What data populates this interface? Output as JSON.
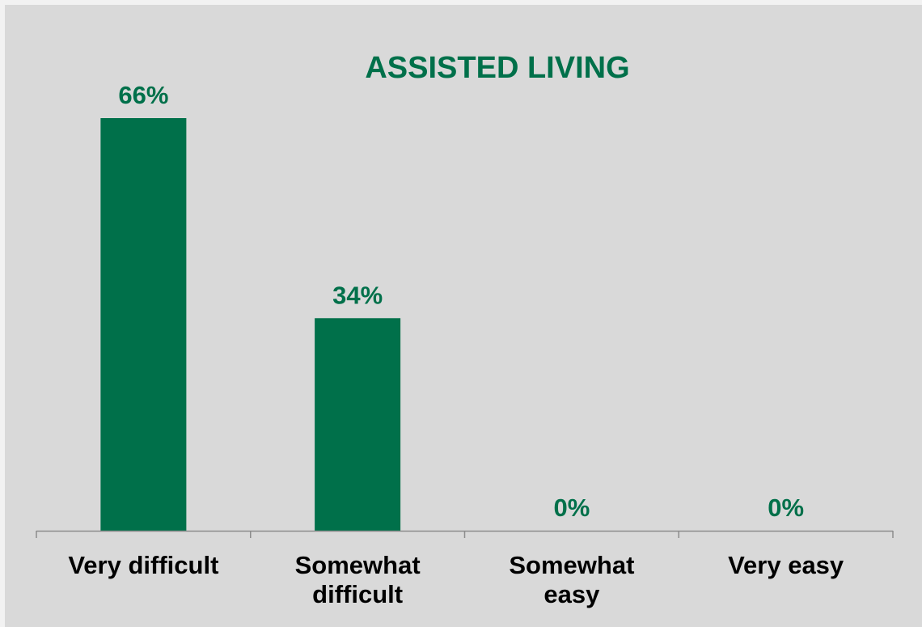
{
  "colors": {
    "accent": "#00704a",
    "panel_background": "#d9d9d9",
    "page_background": "#f2f2f2",
    "axis": "#8c8c8c",
    "category_text": "#000000"
  },
  "chart_data": {
    "type": "bar",
    "title": "ASSISTED LIVING",
    "categories": [
      [
        "Very difficult"
      ],
      [
        "Somewhat",
        "difficult"
      ],
      [
        "Somewhat",
        "easy"
      ],
      [
        "Very easy"
      ]
    ],
    "values": [
      66,
      34,
      0,
      0
    ],
    "data_labels": [
      "66%",
      "34%",
      "0%",
      "0%"
    ],
    "unit": "%",
    "ylim": [
      0,
      66
    ],
    "grid": false,
    "legend": "none",
    "xlabel": "",
    "ylabel": ""
  }
}
